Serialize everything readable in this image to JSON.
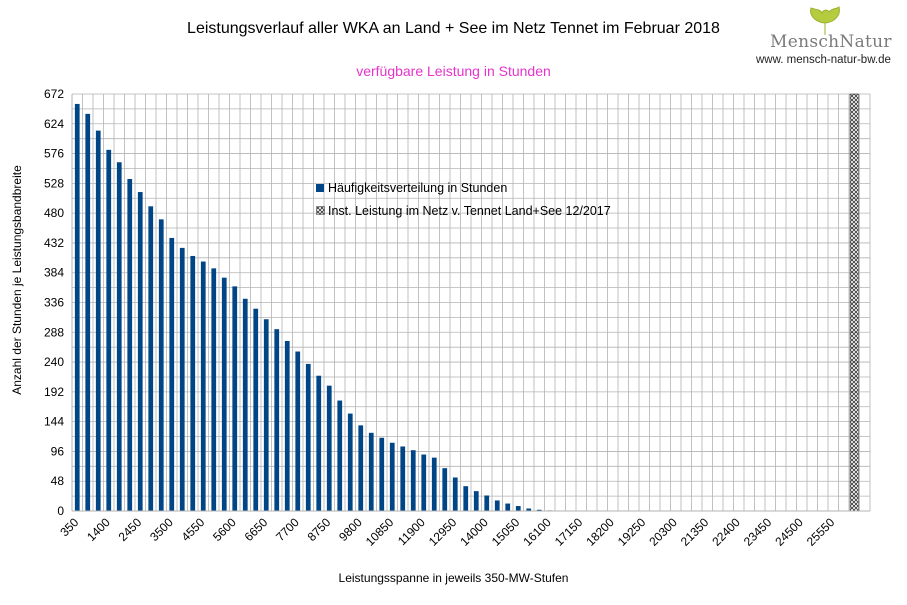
{
  "title": "Leistungsverlauf aller WKA an Land + See im Netz Tennet im Februar 2018",
  "subtitle": "verfügbare Leistung in Stunden",
  "logo": {
    "name": "MenschNatur",
    "url": "www. mensch-natur-bw.de"
  },
  "colors": {
    "subtitle": "#e633cc",
    "bars": "#004586",
    "grid": "#b3b3b3",
    "logo_leaf": "#b5cc3e"
  },
  "chart_data": {
    "type": "bar",
    "xlabel": "Leistungsspanne in jeweils 350-MW-Stufen",
    "ylabel": "Anzahl der Stunden je Leistungsbandbreite",
    "ylim": [
      0,
      672
    ],
    "y_ticks": [
      0,
      48,
      96,
      144,
      192,
      240,
      288,
      336,
      384,
      432,
      480,
      528,
      576,
      624,
      672
    ],
    "x_tick_labels": [
      "350",
      "1400",
      "2450",
      "3500",
      "4550",
      "5600",
      "6650",
      "7700",
      "8750",
      "9800",
      "10850",
      "11900",
      "12950",
      "14000",
      "15050",
      "16100",
      "17150",
      "18200",
      "19250",
      "20300",
      "21350",
      "22400",
      "23450",
      "24500",
      "25550"
    ],
    "x_tick_every_n_categories": 3,
    "category_count": 76,
    "grid": true,
    "legend_position": "center",
    "series": [
      {
        "name": "Häufigkeitsverteilung in Stunden",
        "type": "bar",
        "values": [
          656,
          640,
          613,
          582,
          562,
          535,
          514,
          491,
          470,
          440,
          424,
          411,
          402,
          391,
          376,
          362,
          342,
          326,
          309,
          293,
          274,
          257,
          237,
          218,
          202,
          178,
          157,
          138,
          126,
          118,
          110,
          104,
          98,
          91,
          86,
          69,
          54,
          40,
          32,
          25,
          17,
          12,
          8,
          4,
          2,
          1
        ]
      },
      {
        "name": "Inst. Leistung im Netz v. Tennet  Land+See 12/2017",
        "type": "bar",
        "pattern": "crosshatch",
        "category_index": 74,
        "value": 672
      }
    ]
  }
}
